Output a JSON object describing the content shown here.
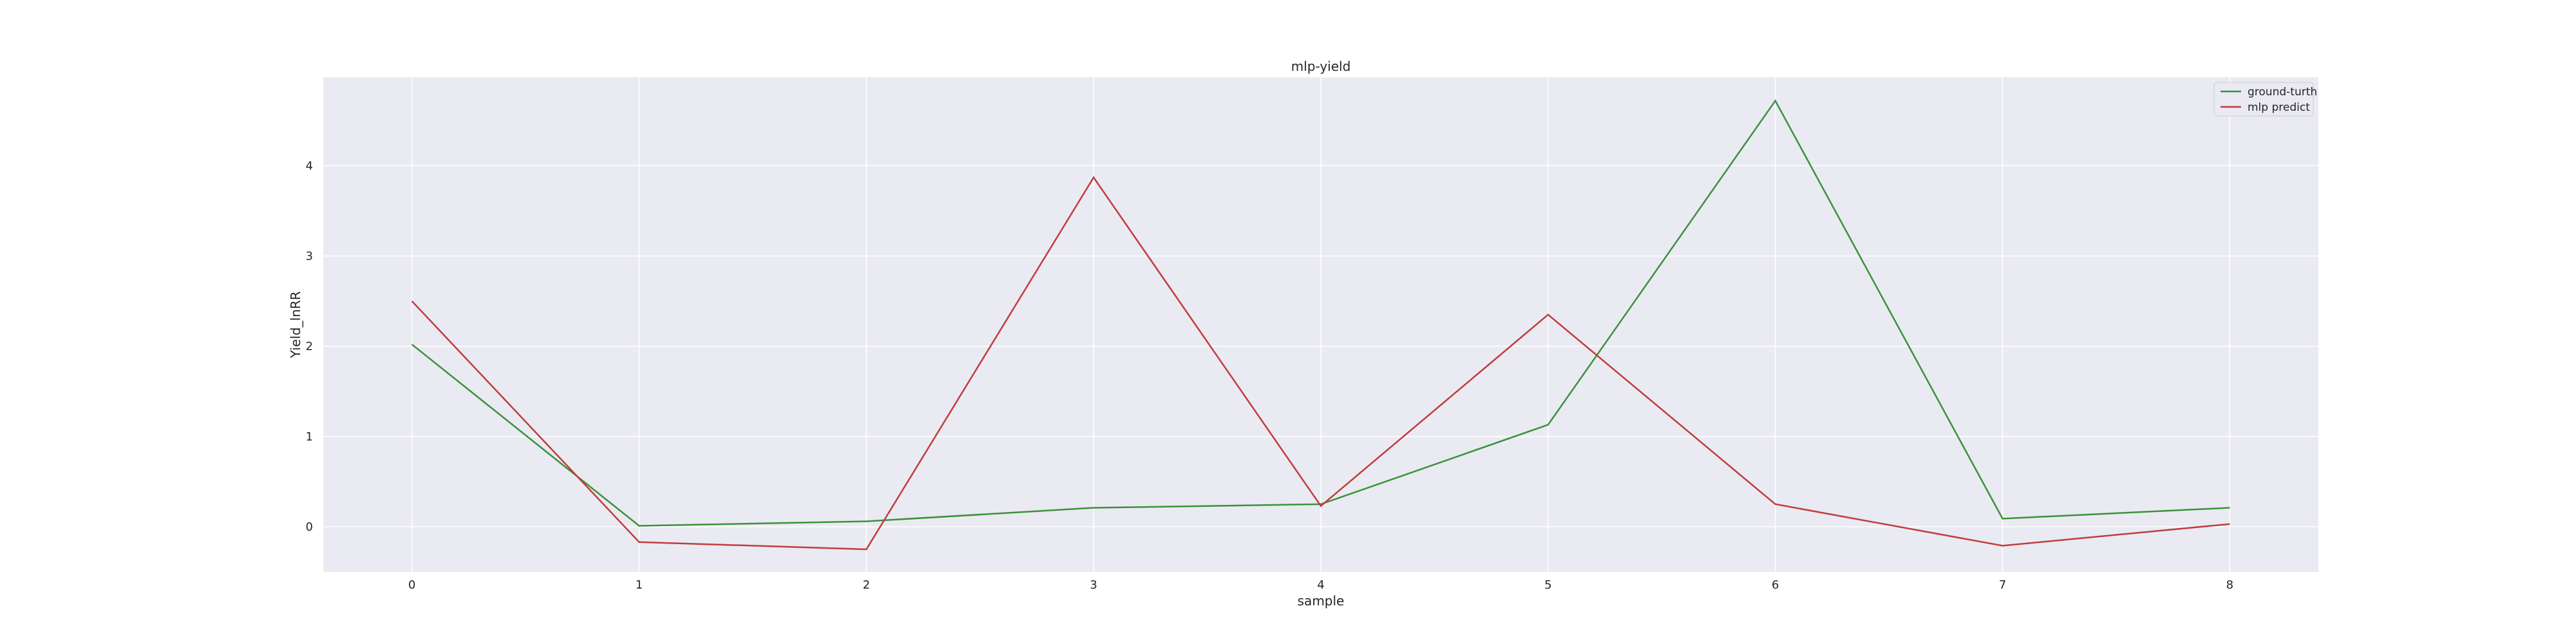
{
  "chart_data": {
    "type": "line",
    "title": "mlp-yield",
    "xlabel": "sample",
    "ylabel": "Yield_lnRR",
    "x": [
      0,
      1,
      2,
      3,
      4,
      5,
      6,
      7,
      8
    ],
    "x_ticks": [
      "0",
      "1",
      "2",
      "3",
      "4",
      "5",
      "6",
      "7",
      "8"
    ],
    "y_ticks": [
      "0",
      "1",
      "2",
      "3",
      "4"
    ],
    "xlim": [
      -0.39,
      8.39
    ],
    "ylim": [
      -0.5,
      4.98
    ],
    "grid": true,
    "legend_position": "top-right",
    "background_color": "#eaeaf2",
    "grid_color": "#ffffff",
    "series": [
      {
        "name": "ground-turth",
        "color": "#3a923a",
        "values": [
          2.02,
          0.01,
          0.06,
          0.21,
          0.25,
          1.13,
          4.72,
          0.09,
          0.21
        ]
      },
      {
        "name": "mlp predict",
        "color": "#c03d3e",
        "values": [
          2.5,
          -0.17,
          -0.25,
          3.87,
          0.23,
          2.35,
          0.25,
          -0.21,
          0.03
        ]
      }
    ]
  }
}
